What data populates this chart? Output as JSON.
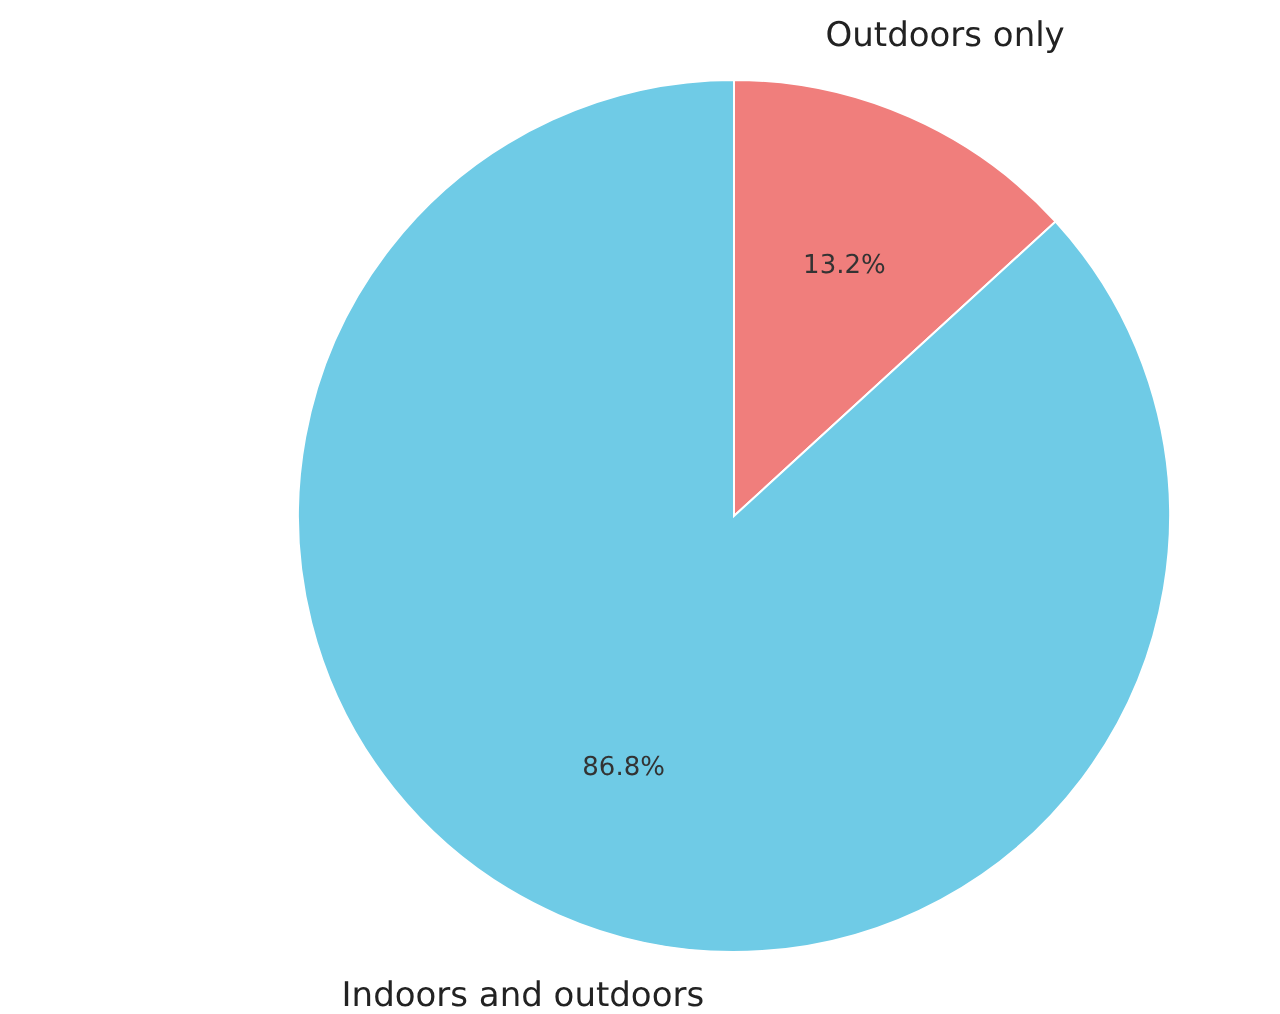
{
  "chart_data": {
    "type": "pie",
    "categories": [
      "Outdoors only",
      "Indoors and outdoors"
    ],
    "values": [
      13.2,
      86.8
    ],
    "colors": [
      "#f07e7c",
      "#6fcbe6"
    ],
    "value_labels": [
      "13.2%",
      "86.8%"
    ]
  }
}
